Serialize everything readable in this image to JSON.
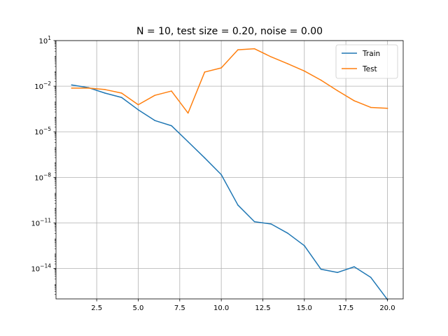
{
  "chart_data": {
    "type": "line",
    "title": "N = 10, test size = 0.20, noise = 0.00",
    "xlabel": "",
    "ylabel": "",
    "xlim": [
      0.05,
      20.95
    ],
    "ylim": [
      1e-16,
      10
    ],
    "yscale": "log",
    "grid": true,
    "legend_position": "top-right",
    "x_ticks": [
      2.5,
      5.0,
      7.5,
      10.0,
      12.5,
      15.0,
      17.5,
      20.0
    ],
    "x_tick_labels": [
      "2.5",
      "5.0",
      "7.5",
      "10.0",
      "12.5",
      "15.0",
      "17.5",
      "20.0"
    ],
    "y_ticks": [
      {
        "value": 1e-14,
        "base": "10",
        "exp": "−14"
      },
      {
        "value": 1e-11,
        "base": "10",
        "exp": "−11"
      },
      {
        "value": 1e-08,
        "base": "10",
        "exp": "−8"
      },
      {
        "value": 1e-05,
        "base": "10",
        "exp": "−5"
      },
      {
        "value": 0.01,
        "base": "10",
        "exp": "−2"
      },
      {
        "value": 10,
        "base": "10",
        "exp": "1"
      }
    ],
    "x": [
      1,
      2,
      3,
      4,
      5,
      6,
      7,
      8,
      9,
      10,
      11,
      12,
      13,
      14,
      15,
      16,
      17,
      18,
      19,
      20
    ],
    "series": [
      {
        "name": "Train",
        "color": "#1f77b4",
        "values": [
          0.012,
          0.008,
          0.0035,
          0.0018,
          0.00028,
          5.5e-05,
          2.5e-05,
          2.2e-06,
          1.9e-07,
          1.5e-08,
          1.5e-10,
          1.2e-11,
          8.5e-12,
          2.1e-12,
          3.2e-13,
          9e-15,
          5.5e-15,
          1.3e-14,
          2.6e-15,
          9e-17
        ]
      },
      {
        "name": "Test",
        "color": "#ff7f0e",
        "values": [
          0.0075,
          0.0075,
          0.006,
          0.0035,
          0.0006,
          0.0025,
          0.0048,
          0.00017,
          0.085,
          0.16,
          2.5,
          2.9,
          0.85,
          0.3,
          0.1,
          0.025,
          0.005,
          0.0011,
          0.0004,
          0.00035
        ]
      }
    ]
  }
}
